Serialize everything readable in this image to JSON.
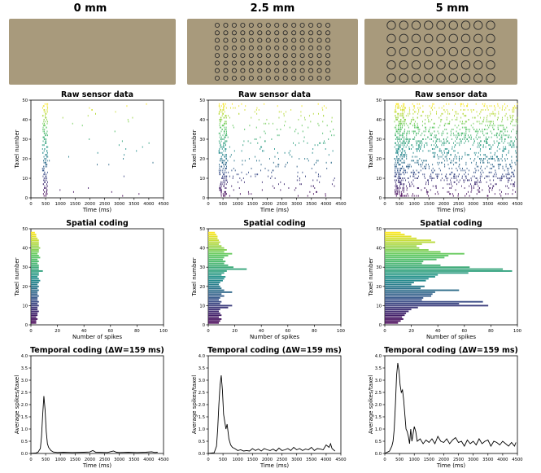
{
  "column_titles": [
    "0 mm",
    "2.5 mm",
    "5 mm"
  ],
  "row_titles": {
    "raw": "Raw sensor data",
    "spatial": "Spatial coding",
    "temporal": "Temporal coding (ΔW=159 ms)"
  },
  "colors": {
    "surface": "#a89a7c",
    "dot_outline": "#2b2b2b",
    "line": "#000000",
    "colormap": [
      "#440154",
      "#3b528b",
      "#21918c",
      "#5ec962",
      "#fde725"
    ]
  },
  "texture_images": [
    {
      "pattern": "none"
    },
    {
      "pattern": "small-circles",
      "rows": 8,
      "cols": 14
    },
    {
      "pattern": "large-circles",
      "rows": 5,
      "cols": 9
    }
  ],
  "chart_data": [
    {
      "type": "scatter",
      "title": "Raw sensor data",
      "xlabel": "Time (ms)",
      "ylabel": "Taxel number",
      "xlim": [
        0,
        4500
      ],
      "ylim": [
        0,
        50
      ],
      "xticks": [
        0,
        500,
        1000,
        1500,
        2000,
        2500,
        3000,
        3500,
        4000,
        4500
      ],
      "yticks": [
        0,
        10,
        20,
        30,
        40,
        50
      ],
      "series": [
        {
          "column": 0,
          "taxels": [
            1,
            2,
            3,
            4,
            5,
            6,
            7,
            8,
            9,
            10,
            11,
            12,
            13,
            14,
            15,
            16,
            17,
            18,
            19,
            20,
            21,
            22,
            23,
            24,
            25,
            26,
            27,
            28,
            29,
            30,
            31,
            32,
            33,
            34,
            35,
            36,
            37,
            38,
            39,
            40,
            41,
            42,
            43,
            44,
            45,
            46,
            47,
            48
          ],
          "burst_ms": [
            380,
            560
          ],
          "tail_end_ms": 4300,
          "tail_rate": [
            0.25,
            0.3,
            0.2,
            0.2,
            0.2,
            0.15,
            0.1,
            0.1,
            0.1,
            0.1,
            0.1,
            0.1,
            0.1,
            0.1,
            0.1,
            0.1,
            0.2,
            0.2,
            0.2,
            0.2,
            0.2,
            0.2,
            0.2,
            0.2,
            0.2,
            0.2,
            0.3,
            0.2,
            0.2,
            0.2,
            0.1,
            0.1,
            0.1,
            0.1,
            0.1,
            0.1,
            0.2,
            0.2,
            0.2,
            0.3,
            0.3,
            0.4,
            0.4,
            0.3,
            0.3,
            0.3,
            0.3,
            0.2
          ]
        },
        {
          "column": 1,
          "taxels": [
            1,
            2,
            3,
            4,
            5,
            6,
            7,
            8,
            9,
            10,
            11,
            12,
            13,
            14,
            15,
            16,
            17,
            18,
            19,
            20,
            21,
            22,
            23,
            24,
            25,
            26,
            27,
            28,
            29,
            30,
            31,
            32,
            33,
            34,
            35,
            36,
            37,
            38,
            39,
            40,
            41,
            42,
            43,
            44,
            45,
            46,
            47,
            48
          ],
          "burst_ms": [
            350,
            620
          ],
          "tail_end_ms": 4300,
          "tail_rate": [
            1.0,
            1.2,
            1.0,
            1.0,
            1.2,
            1.5,
            1.2,
            1.5,
            1.5,
            2.0,
            3.0,
            2.0,
            2.0,
            1.5,
            1.2,
            1.0,
            1.5,
            1.5,
            2.5,
            1.5,
            1.0,
            0.8,
            1.0,
            1.5,
            1.0,
            0.8,
            1.0,
            2.5,
            1.5,
            1.0,
            0.8,
            1.0,
            0.8,
            1.0,
            1.2,
            1.0,
            1.5,
            1.2,
            1.0,
            1.0,
            1.2,
            1.5,
            1.5,
            1.2,
            1.2,
            1.5,
            1.2,
            1.0
          ]
        },
        {
          "column": 2,
          "taxels": [
            1,
            2,
            3,
            4,
            5,
            6,
            7,
            8,
            9,
            10,
            11,
            12,
            13,
            14,
            15,
            16,
            17,
            18,
            19,
            20,
            21,
            22,
            23,
            24,
            25,
            26,
            27,
            28,
            29,
            30,
            31,
            32,
            33,
            34,
            35,
            36,
            37,
            38,
            39,
            40,
            41,
            42,
            43,
            44,
            45,
            46,
            47,
            48
          ],
          "burst_ms": [
            320,
            660
          ],
          "tail_end_ms": 4500,
          "tail_rate": [
            2.5,
            2.5,
            2.0,
            2.0,
            3.0,
            3.5,
            3.0,
            3.0,
            4.5,
            6.0,
            7.0,
            4.5,
            4.0,
            3.5,
            4.0,
            4.0,
            4.5,
            3.5,
            4.5,
            5.0,
            4.5,
            3.5,
            3.0,
            3.5,
            4.0,
            4.5,
            5.0,
            6.5,
            7.0,
            6.5,
            5.0,
            5.0,
            6.0,
            5.5,
            5.0,
            4.5,
            4.0,
            4.0,
            5.0,
            4.0,
            3.5,
            4.0,
            3.5,
            3.5,
            4.0,
            3.5,
            3.5,
            3.0
          ]
        }
      ]
    },
    {
      "type": "bar",
      "orientation": "horizontal",
      "title": "Spatial coding",
      "xlabel": "Number of spikes",
      "ylabel": "Taxel number",
      "xlim": [
        0,
        100
      ],
      "ylim": [
        0,
        50
      ],
      "xticks": [
        0,
        20,
        40,
        60,
        80,
        100
      ],
      "yticks": [
        0,
        10,
        20,
        30,
        40,
        50
      ],
      "categories": [
        1,
        2,
        3,
        4,
        5,
        6,
        7,
        8,
        9,
        10,
        11,
        12,
        13,
        14,
        15,
        16,
        17,
        18,
        19,
        20,
        21,
        22,
        23,
        24,
        25,
        26,
        27,
        28,
        29,
        30,
        31,
        32,
        33,
        34,
        35,
        36,
        37,
        38,
        39,
        40,
        41,
        42,
        43,
        44,
        45,
        46,
        47,
        48
      ],
      "series": [
        {
          "column": 0,
          "values": [
            4,
            4,
            5,
            4,
            5,
            5,
            6,
            5,
            5,
            6,
            5,
            6,
            5,
            5,
            6,
            5,
            5,
            6,
            5,
            6,
            5,
            6,
            7,
            6,
            5,
            6,
            6,
            9,
            6,
            6,
            6,
            5,
            6,
            5,
            7,
            6,
            5,
            6,
            6,
            7,
            6,
            6,
            6,
            6,
            5,
            4,
            4,
            3
          ]
        },
        {
          "column": 1,
          "values": [
            8,
            9,
            10,
            8,
            10,
            9,
            8,
            9,
            15,
            18,
            9,
            10,
            8,
            9,
            12,
            10,
            18,
            12,
            10,
            9,
            8,
            9,
            11,
            12,
            13,
            10,
            12,
            14,
            29,
            19,
            15,
            12,
            13,
            11,
            12,
            15,
            18,
            12,
            14,
            12,
            10,
            8,
            9,
            8,
            7,
            7,
            6,
            5
          ]
        },
        {
          "column": 2,
          "values": [
            10,
            12,
            14,
            13,
            15,
            16,
            18,
            20,
            25,
            78,
            56,
            74,
            28,
            29,
            35,
            36,
            38,
            56,
            27,
            30,
            20,
            22,
            31,
            33,
            38,
            40,
            63,
            96,
            89,
            64,
            42,
            28,
            29,
            39,
            45,
            48,
            60,
            42,
            33,
            26,
            24,
            28,
            38,
            35,
            24,
            20,
            15,
            12
          ]
        }
      ]
    },
    {
      "type": "line",
      "title": "Temporal coding (ΔW=159 ms)",
      "xlabel": "Time (ms)",
      "ylabel": "Average spikes/taxel",
      "xlim": [
        0,
        4500
      ],
      "ylim": [
        0,
        4.0
      ],
      "xticks": [
        0,
        500,
        1000,
        1500,
        2000,
        2500,
        3000,
        3500,
        4000,
        4500
      ],
      "yticks": [
        0.0,
        0.5,
        1.0,
        1.5,
        2.0,
        2.5,
        3.0,
        3.5,
        4.0
      ],
      "series": [
        {
          "column": 0,
          "x": [
            0,
            160,
            240,
            320,
            360,
            400,
            440,
            480,
            520,
            560,
            600,
            680,
            760,
            900,
            1100,
            1400,
            1800,
            2000,
            2100,
            2200,
            2600,
            2800,
            2900,
            3000,
            3300,
            3600,
            3900,
            4100,
            4200,
            4300
          ],
          "y": [
            0,
            0.02,
            0.05,
            0.2,
            0.7,
            1.6,
            2.35,
            1.8,
            0.9,
            0.4,
            0.25,
            0.12,
            0.06,
            0.04,
            0.05,
            0.04,
            0.05,
            0.06,
            0.12,
            0.05,
            0.04,
            0.1,
            0.05,
            0.04,
            0.05,
            0.04,
            0.05,
            0.07,
            0.04,
            0.05
          ]
        },
        {
          "column": 1,
          "x": [
            0,
            200,
            280,
            320,
            360,
            400,
            440,
            480,
            520,
            560,
            600,
            640,
            700,
            760,
            820,
            900,
            1000,
            1100,
            1200,
            1300,
            1400,
            1500,
            1600,
            1700,
            1800,
            1900,
            2000,
            2100,
            2200,
            2300,
            2400,
            2500,
            2600,
            2700,
            2800,
            2900,
            3000,
            3100,
            3200,
            3300,
            3400,
            3500,
            3600,
            3700,
            3800,
            3900,
            4000,
            4100,
            4150,
            4200,
            4300
          ],
          "y": [
            0,
            0.03,
            0.3,
            1.0,
            2.0,
            2.8,
            3.2,
            2.6,
            1.6,
            1.3,
            1.0,
            1.2,
            0.6,
            0.35,
            0.25,
            0.2,
            0.12,
            0.15,
            0.1,
            0.12,
            0.1,
            0.2,
            0.12,
            0.18,
            0.1,
            0.2,
            0.15,
            0.12,
            0.18,
            0.1,
            0.22,
            0.12,
            0.15,
            0.2,
            0.12,
            0.25,
            0.15,
            0.2,
            0.12,
            0.18,
            0.15,
            0.25,
            0.12,
            0.2,
            0.18,
            0.15,
            0.35,
            0.25,
            0.4,
            0.2,
            0.1
          ]
        },
        {
          "column": 2,
          "x": [
            0,
            160,
            240,
            280,
            320,
            360,
            400,
            440,
            480,
            520,
            560,
            600,
            640,
            680,
            720,
            760,
            800,
            840,
            880,
            920,
            960,
            1000,
            1050,
            1100,
            1200,
            1300,
            1400,
            1500,
            1600,
            1700,
            1800,
            1900,
            2000,
            2100,
            2200,
            2300,
            2400,
            2500,
            2600,
            2700,
            2800,
            2900,
            3000,
            3100,
            3200,
            3300,
            3400,
            3500,
            3600,
            3700,
            3800,
            3900,
            4000,
            4100,
            4200,
            4300,
            4400,
            4450
          ],
          "y": [
            0,
            0.1,
            0.3,
            0.5,
            1.0,
            2.0,
            3.2,
            3.7,
            3.4,
            2.8,
            2.5,
            2.6,
            2.2,
            1.6,
            1.0,
            0.9,
            0.7,
            0.4,
            1.0,
            0.5,
            0.8,
            1.1,
            0.9,
            0.5,
            0.6,
            0.4,
            0.55,
            0.45,
            0.6,
            0.4,
            0.7,
            0.5,
            0.45,
            0.6,
            0.4,
            0.55,
            0.65,
            0.45,
            0.5,
            0.3,
            0.55,
            0.4,
            0.5,
            0.35,
            0.6,
            0.4,
            0.5,
            0.55,
            0.3,
            0.5,
            0.45,
            0.35,
            0.5,
            0.4,
            0.3,
            0.45,
            0.3,
            0.45
          ]
        }
      ]
    }
  ]
}
